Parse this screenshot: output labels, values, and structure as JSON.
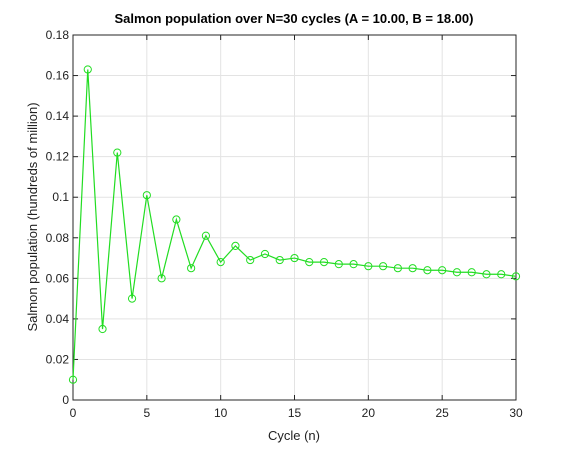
{
  "chart_data": {
    "type": "line",
    "title": "Salmon population over N=30 cycles (A = 10.00, B = 18.00)",
    "xlabel": "Cycle (n)",
    "ylabel": "Salmon population (hundreds of million)",
    "xlim": [
      0,
      30
    ],
    "ylim": [
      0,
      0.18
    ],
    "xticks": [
      "0",
      "5",
      "10",
      "15",
      "20",
      "25",
      "30"
    ],
    "yticks": [
      "0",
      "0.02",
      "0.04",
      "0.06",
      "0.08",
      "0.1",
      "0.12",
      "0.14",
      "0.16",
      "0.18"
    ],
    "grid": true,
    "marker": "circle",
    "color": "#22dd22",
    "series": [
      {
        "x": [
          0,
          1,
          2,
          3,
          4,
          5,
          6,
          7,
          8,
          9,
          10,
          11,
          12,
          13,
          14,
          15,
          16,
          17,
          18,
          19,
          20,
          21,
          22,
          23,
          24,
          25,
          26,
          27,
          28,
          29,
          30
        ],
        "values": [
          0.01,
          0.163,
          0.035,
          0.122,
          0.05,
          0.101,
          0.06,
          0.089,
          0.065,
          0.081,
          0.068,
          0.076,
          0.069,
          0.072,
          0.069,
          0.07,
          0.068,
          0.068,
          0.067,
          0.067,
          0.066,
          0.066,
          0.065,
          0.065,
          0.064,
          0.064,
          0.063,
          0.063,
          0.062,
          0.062,
          0.061
        ]
      }
    ]
  }
}
